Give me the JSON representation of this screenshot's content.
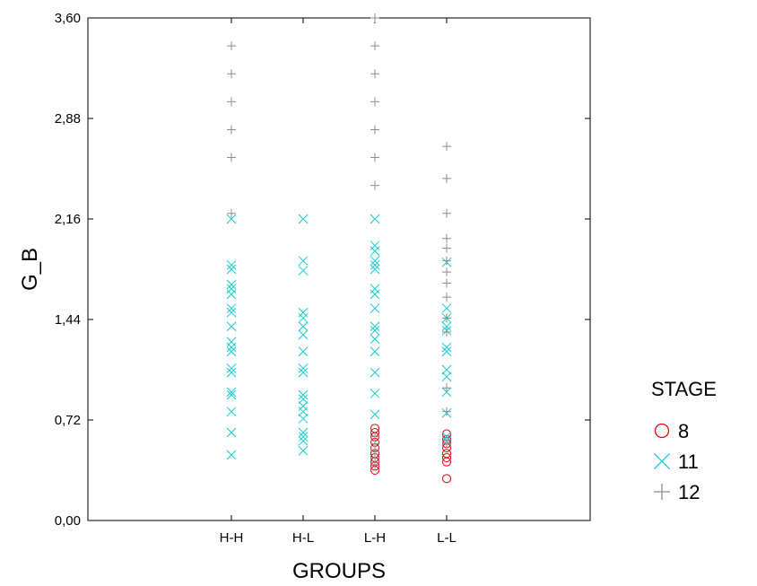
{
  "chart_data": {
    "type": "scatter",
    "xlabel": "GROUPS",
    "ylabel": "G_B",
    "categories": [
      "H-H",
      "H-L",
      "L-H",
      "L-L"
    ],
    "ylim": [
      0,
      3.6
    ],
    "yticks": [
      0.0,
      0.72,
      1.44,
      2.16,
      2.88,
      3.6
    ],
    "ytick_labels": [
      "0,00",
      "0,72",
      "1,44",
      "2,16",
      "2,88",
      "3,60"
    ],
    "grid": false,
    "legend": {
      "title": "STAGE",
      "placement": "right",
      "entries": [
        {
          "label": "8",
          "marker": "circle",
          "color": "#e8000b"
        },
        {
          "label": "11",
          "marker": "x",
          "color": "#17c9d3"
        },
        {
          "label": "12",
          "marker": "plus",
          "color": "#8c8c8c"
        }
      ]
    },
    "series": [
      {
        "name": "8",
        "marker": "circle",
        "color": "#e8000b",
        "points": {
          "H-H": [],
          "H-L": [],
          "L-H": [
            0.36,
            0.39,
            0.42,
            0.45,
            0.48,
            0.52,
            0.56,
            0.6,
            0.63,
            0.66
          ],
          "L-L": [
            0.3,
            0.42,
            0.45,
            0.48,
            0.52,
            0.55,
            0.58,
            0.62
          ]
        }
      },
      {
        "name": "11",
        "marker": "x",
        "color": "#17c9d3",
        "points": {
          "H-H": [
            0.47,
            0.63,
            0.78,
            0.9,
            0.92,
            1.06,
            1.09,
            1.21,
            1.24,
            1.28,
            1.39,
            1.49,
            1.52,
            1.62,
            1.66,
            1.69,
            1.8,
            1.83,
            2.16
          ],
          "H-L": [
            0.5,
            0.57,
            0.6,
            0.63,
            0.73,
            0.78,
            0.82,
            0.87,
            0.9,
            1.06,
            1.09,
            1.21,
            1.33,
            1.39,
            1.45,
            1.49,
            1.79,
            1.86,
            2.16
          ],
          "L-H": [
            0.76,
            0.91,
            1.06,
            1.21,
            1.3,
            1.36,
            1.39,
            1.52,
            1.62,
            1.66,
            1.8,
            1.83,
            1.86,
            1.93,
            1.97,
            2.16
          ],
          "L-L": [
            0.57,
            0.6,
            0.77,
            0.92,
            1.03,
            1.08,
            1.21,
            1.24,
            1.36,
            1.39,
            1.45,
            1.52,
            1.85
          ]
        }
      },
      {
        "name": "12",
        "marker": "plus",
        "color": "#8c8c8c",
        "points": {
          "H-H": [
            2.2,
            2.6,
            2.8,
            3.0,
            3.2,
            3.4
          ],
          "H-L": [],
          "L-H": [
            0.4,
            0.45,
            0.5,
            0.55,
            0.6,
            2.4,
            2.6,
            2.8,
            3.0,
            3.2,
            3.4,
            3.6
          ],
          "L-L": [
            0.55,
            0.78,
            0.95,
            1.35,
            1.45,
            1.6,
            1.7,
            1.78,
            1.86,
            1.95,
            2.02,
            2.2,
            2.45,
            2.68
          ]
        }
      }
    ]
  }
}
